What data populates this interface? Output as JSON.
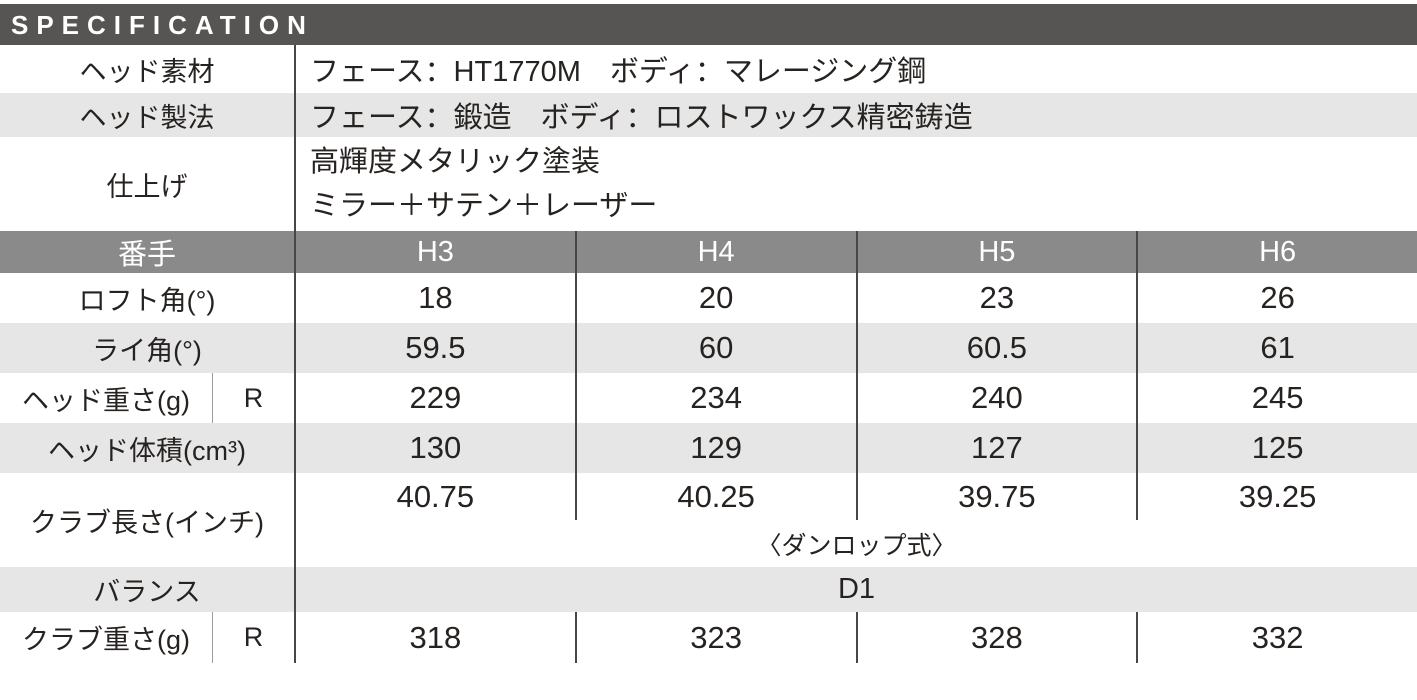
{
  "title": "SPECIFICATION",
  "colors": {
    "title_bar_bg": "#575553",
    "header_row_bg": "#8a8a8a",
    "row_alt_bg": "#e6e6e6",
    "text": "#262220",
    "divider": "#4a4645",
    "sub_divider": "#9c9c9c",
    "header_text": "#ffffff"
  },
  "info_rows": [
    {
      "label": "ヘッド素材",
      "value": "フェース：HT1770M　ボディ：マレージング鋼"
    },
    {
      "label": "ヘッド製法",
      "value": "フェース：鍛造　ボディ：ロストワックス精密鋳造"
    },
    {
      "label": "仕上げ",
      "value_line1": "高輝度メタリック塗装",
      "value_line2": "ミラー＋サテン＋レーザー"
    }
  ],
  "spec_table": {
    "header": {
      "label": "番手",
      "columns": [
        "H3",
        "H4",
        "H5",
        "H6"
      ]
    },
    "rows": [
      {
        "label": "ロフト角(°)",
        "values": [
          "18",
          "20",
          "23",
          "26"
        ]
      },
      {
        "label": "ライ角(°)",
        "values": [
          "59.5",
          "60",
          "60.5",
          "61"
        ]
      },
      {
        "label": "ヘッド重さ(g)",
        "sub": "R",
        "values": [
          "229",
          "234",
          "240",
          "245"
        ]
      },
      {
        "label": "ヘッド体積(cm³)",
        "values": [
          "130",
          "129",
          "127",
          "125"
        ]
      },
      {
        "label": "クラブ長さ(インチ)",
        "values": [
          "40.75",
          "40.25",
          "39.75",
          "39.25"
        ],
        "note": "〈ダンロップ式〉"
      },
      {
        "label": "バランス",
        "span_value": "D1"
      },
      {
        "label": "クラブ重さ(g)",
        "sub": "R",
        "values": [
          "318",
          "323",
          "328",
          "332"
        ]
      }
    ]
  }
}
